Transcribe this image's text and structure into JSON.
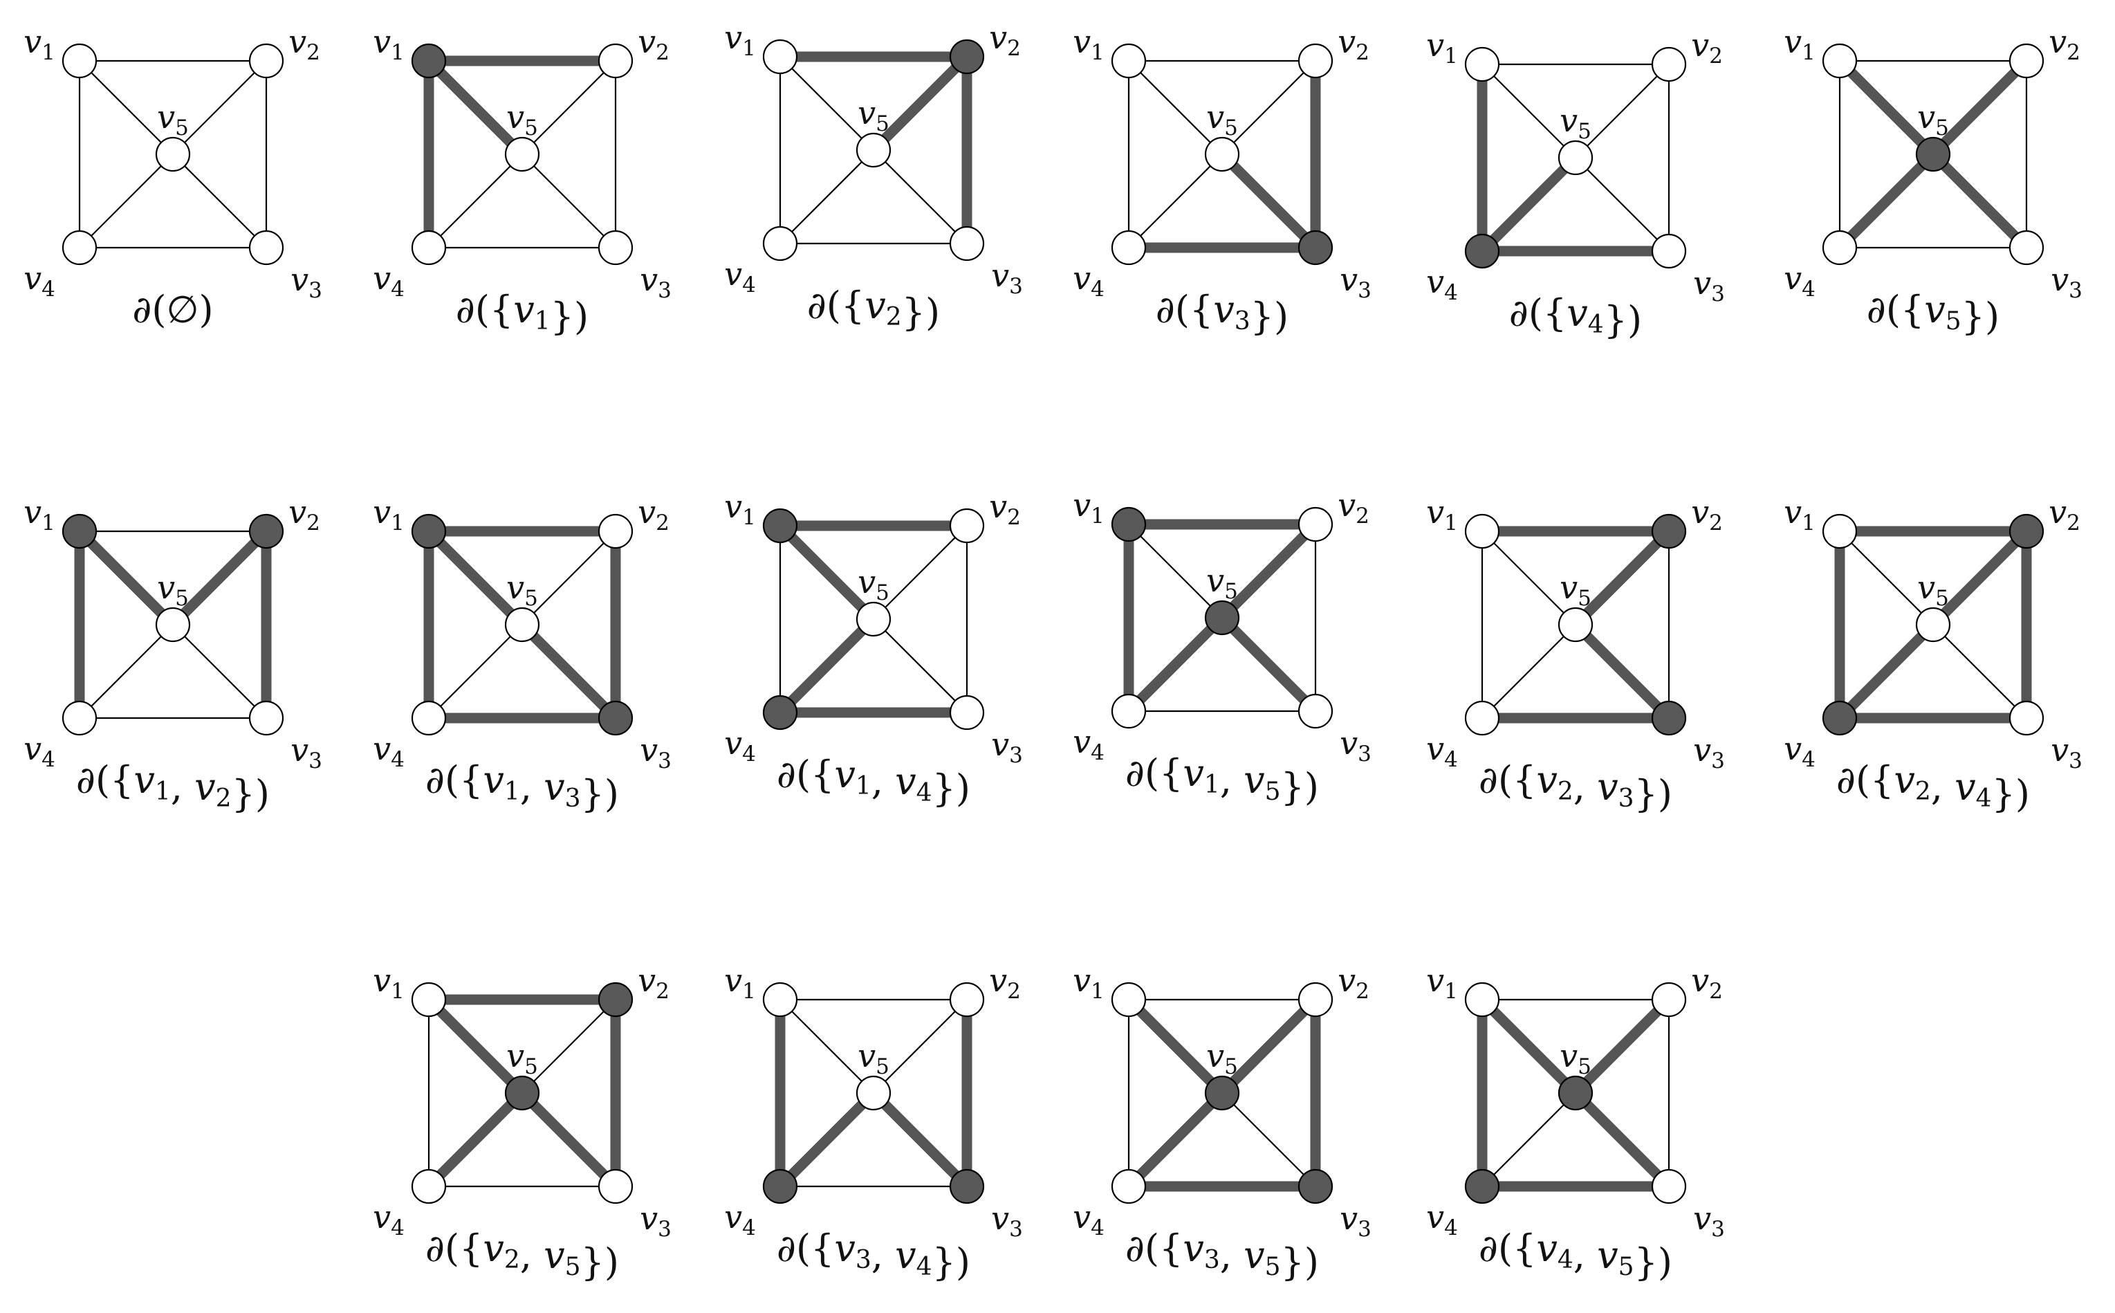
{
  "vertex_labels": [
    {
      "letter": "v",
      "sub": "1"
    },
    {
      "letter": "v",
      "sub": "2"
    },
    {
      "letter": "v",
      "sub": "3"
    },
    {
      "letter": "v",
      "sub": "4"
    },
    {
      "letter": "v",
      "sub": "5"
    }
  ],
  "edges": [
    [
      "v1",
      "v2"
    ],
    [
      "v2",
      "v3"
    ],
    [
      "v3",
      "v4"
    ],
    [
      "v4",
      "v1"
    ],
    [
      "v1",
      "v5"
    ],
    [
      "v2",
      "v5"
    ],
    [
      "v3",
      "v5"
    ],
    [
      "v4",
      "v5"
    ]
  ],
  "colors": {
    "edge_thin": "#000000",
    "edge_cut": "#555555",
    "node_fill_white": "#ffffff",
    "node_fill_shaded": "#595959",
    "node_stroke": "#000000"
  },
  "panels": [
    {
      "set": [],
      "caption": "∂(∅)"
    },
    {
      "set": [
        "v1"
      ],
      "caption": "∂({v1})"
    },
    {
      "set": [
        "v2"
      ],
      "caption": "∂({v2})"
    },
    {
      "set": [
        "v3"
      ],
      "caption": "∂({v3})"
    },
    {
      "set": [
        "v4"
      ],
      "caption": "∂({v4})"
    },
    {
      "set": [
        "v5"
      ],
      "caption": "∂({v5})"
    },
    {
      "set": [
        "v1",
        "v2"
      ],
      "caption": "∂({v1, v2})"
    },
    {
      "set": [
        "v1",
        "v3"
      ],
      "caption": "∂({v1, v3})"
    },
    {
      "set": [
        "v1",
        "v4"
      ],
      "caption": "∂({v1, v4})"
    },
    {
      "set": [
        "v1",
        "v5"
      ],
      "caption": "∂({v1, v5})"
    },
    {
      "set": [
        "v2",
        "v3"
      ],
      "caption": "∂({v2, v3})"
    },
    {
      "set": [
        "v2",
        "v4"
      ],
      "caption": "∂({v2, v4})"
    },
    {
      "set": [
        "v2",
        "v5"
      ],
      "caption": "∂({v2, v5})"
    },
    {
      "set": [
        "v3",
        "v4"
      ],
      "caption": "∂({v3, v4})"
    },
    {
      "set": [
        "v3",
        "v5"
      ],
      "caption": "∂({v3, v5})"
    },
    {
      "set": [
        "v4",
        "v5"
      ],
      "caption": "∂({v4, v5})"
    }
  ]
}
